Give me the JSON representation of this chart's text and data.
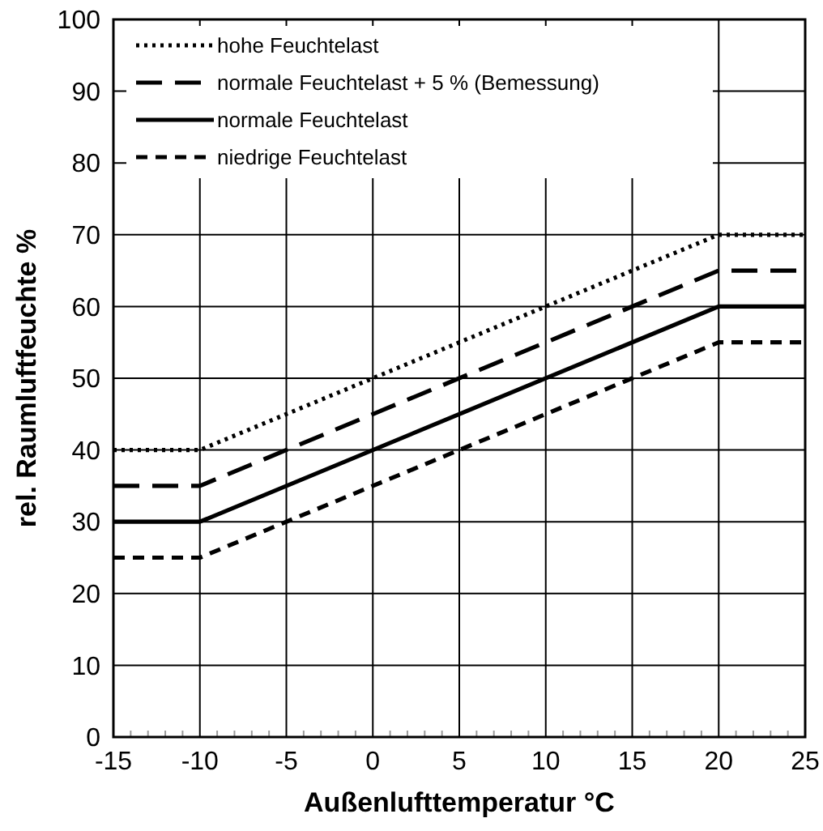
{
  "chart_data": {
    "type": "line",
    "xlabel": "Außenlufttemperatur °C",
    "ylabel": "rel. Raumluftfeuchte %",
    "x": [
      -15,
      -10,
      20,
      25
    ],
    "series": [
      {
        "name": "hohe Feuchtelast",
        "color": "#000000",
        "line_style": "dotted",
        "values": [
          40,
          40,
          70,
          70
        ]
      },
      {
        "name": "normale Feuchtelast + 5 % (Bemessung)",
        "color": "#000000",
        "line_style": "longdash",
        "values": [
          35,
          35,
          65,
          65
        ]
      },
      {
        "name": "normale Feuchtelast",
        "color": "#000000",
        "line_style": "solid",
        "values": [
          30,
          30,
          60,
          60
        ]
      },
      {
        "name": "niedrige Feuchtelast",
        "color": "#000000",
        "line_style": "dashed",
        "values": [
          25,
          25,
          55,
          55
        ]
      }
    ],
    "xlim": [
      -15,
      25
    ],
    "xticks": [
      -15,
      -10,
      -5,
      0,
      5,
      10,
      15,
      20,
      25
    ],
    "ylim": [
      0,
      100
    ],
    "yticks": [
      0,
      10,
      20,
      30,
      40,
      50,
      60,
      70,
      80,
      90,
      100
    ],
    "grid": true,
    "legend": "top left",
    "marker": "none"
  }
}
